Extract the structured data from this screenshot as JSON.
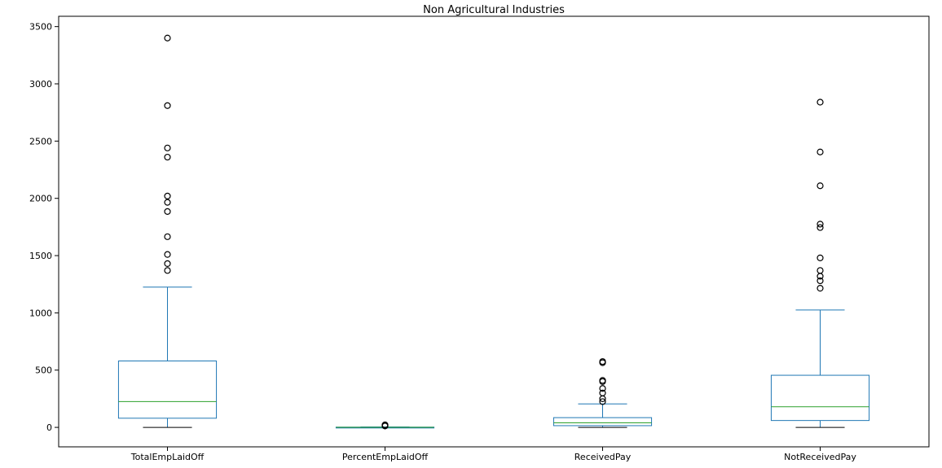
{
  "chart_data": {
    "type": "box",
    "title": "Non Agricultural Industries",
    "xlabel": "",
    "ylabel": "",
    "ylim": [
      -170,
      3590
    ],
    "yticks": [
      0,
      500,
      1000,
      1500,
      2000,
      2500,
      3000,
      3500
    ],
    "grid": false,
    "categories": [
      "TotalEmpLaidOff",
      "PercentEmpLaidOff",
      "ReceivedPay",
      "NotReceivedPay"
    ],
    "boxes": [
      {
        "name": "TotalEmpLaidOff",
        "whisker_low": 0,
        "q1": 80,
        "median": 225,
        "q3": 580,
        "whisker_high": 1225,
        "outliers": [
          1370,
          1430,
          1510,
          1665,
          1885,
          1965,
          2020,
          2360,
          2440,
          2810,
          3400
        ]
      },
      {
        "name": "PercentEmpLaidOff",
        "whisker_low": 0,
        "q1": 0.5,
        "median": 1,
        "q3": 2,
        "whisker_high": 3,
        "outliers": [
          12,
          18,
          22
        ]
      },
      {
        "name": "ReceivedPay",
        "whisker_low": 0,
        "q1": 15,
        "median": 40,
        "q3": 85,
        "whisker_high": 205,
        "outliers": [
          225,
          250,
          300,
          340,
          400,
          410,
          565,
          575
        ]
      },
      {
        "name": "NotReceivedPay",
        "whisker_low": 0,
        "q1": 60,
        "median": 180,
        "q3": 455,
        "whisker_high": 1025,
        "outliers": [
          1215,
          1280,
          1320,
          1370,
          1480,
          1745,
          1775,
          2110,
          2405,
          2840
        ]
      }
    ],
    "colors": {
      "box": "#1f77b4",
      "median": "#2ca02c",
      "whisker_cap": "#000000",
      "outlier": "#000000",
      "axes": "#000000"
    }
  }
}
